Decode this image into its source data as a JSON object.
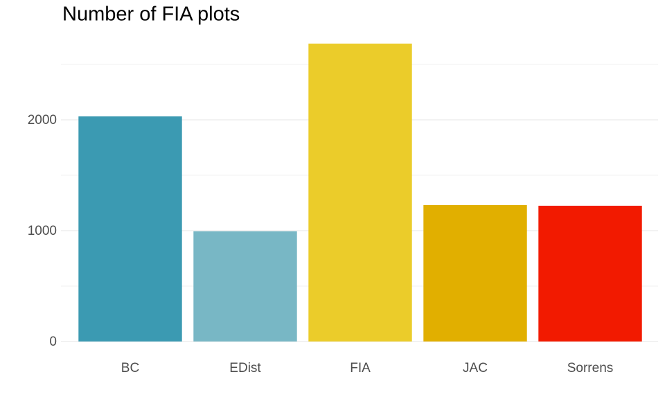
{
  "chart_data": {
    "type": "bar",
    "title": "Number of FIA plots",
    "categories": [
      "BC",
      "EDist",
      "FIA",
      "JAC",
      "Sorrens"
    ],
    "values": [
      2031,
      994,
      2688,
      1231,
      1225
    ],
    "colors": [
      "#3b9ab2",
      "#78b7c5",
      "#ebcc2a",
      "#e1af00",
      "#f21a00"
    ],
    "ylim": [
      0,
      2800
    ],
    "yticks": [
      0,
      1000,
      2000
    ],
    "yticks_minor": [
      500,
      1500,
      2500
    ],
    "grid": true
  }
}
